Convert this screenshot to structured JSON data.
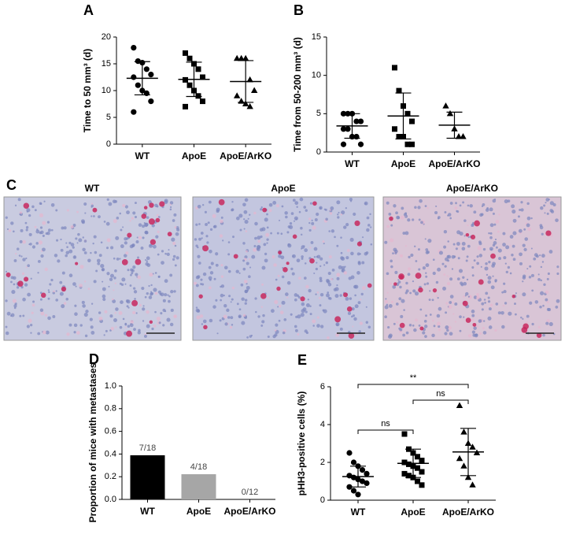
{
  "chart_data": [
    {
      "label": "A",
      "type": "dotplot",
      "y_label": "Time to 50 mm³ (d)",
      "categories": [
        "WT",
        "ApoE",
        "ApoE/ArKO"
      ],
      "values": [
        [
          18,
          15.5,
          15.2,
          14,
          13,
          12.5,
          11,
          10,
          9.5,
          8,
          6
        ],
        [
          17,
          16,
          15,
          14,
          12.5,
          12,
          11,
          10,
          9,
          8,
          7
        ],
        [
          16,
          16,
          16,
          12,
          10,
          9,
          8,
          7.5,
          7
        ]
      ],
      "mean": [
        12.3,
        12.1,
        11.7
      ],
      "sd": [
        3.1,
        3.2,
        3.9
      ],
      "markers": [
        "circle",
        "square",
        "triangle"
      ],
      "color": "#000000",
      "ylim": [
        0,
        20
      ],
      "yticks": [
        0,
        5,
        10,
        15,
        20
      ]
    },
    {
      "label": "B",
      "type": "dotplot",
      "y_label": "Time from 50-200 mm³ (d)",
      "categories": [
        "WT",
        "ApoE",
        "ApoE/ArKO"
      ],
      "values": [
        [
          5,
          5,
          5,
          4,
          4,
          3,
          3,
          2,
          2,
          1,
          1
        ],
        [
          11,
          8,
          6,
          5,
          4,
          3,
          2,
          2,
          1,
          1
        ],
        [
          6,
          5,
          3,
          2,
          2
        ]
      ],
      "mean": [
        3.4,
        4.7,
        3.5
      ],
      "sd": [
        1.6,
        3.0,
        1.7
      ],
      "markers": [
        "circle",
        "square",
        "triangle"
      ],
      "color": "#000000",
      "ylim": [
        0,
        15
      ],
      "yticks": [
        0,
        5,
        10,
        15
      ]
    },
    {
      "label": "D",
      "type": "bar",
      "y_label": "Proportion of mice with metastases",
      "categories": [
        "WT",
        "ApoE",
        "ApoE/ArKO"
      ],
      "values": [
        0.389,
        0.222,
        0
      ],
      "value_labels": [
        "7/18",
        "4/18",
        "0/12"
      ],
      "colors": [
        "#000000",
        "#a6a6a6",
        "#000000"
      ],
      "ylim": [
        0,
        1
      ],
      "yticks": [
        {
          "value": 0,
          "label": "0.0"
        },
        0.2,
        0.4,
        0.6,
        0.8,
        {
          "value": 1,
          "label": "1.0"
        }
      ]
    },
    {
      "label": "E",
      "type": "dotplot",
      "y_label": "pHH3-positive cells (%)",
      "categories": [
        "WT",
        "ApoE",
        "ApoE/ArKO"
      ],
      "values": [
        [
          2.5,
          2.0,
          1.8,
          1.6,
          1.4,
          1.3,
          1.2,
          1.1,
          1.0,
          0.9,
          0.7,
          0.5,
          0.3
        ],
        [
          3.5,
          2.7,
          2.5,
          2.3,
          2.1,
          2.0,
          1.9,
          1.8,
          1.7,
          1.5,
          1.4,
          1.3,
          1.2,
          1.0,
          0.8
        ],
        [
          5.0,
          3.6,
          3.0,
          2.8,
          2.5,
          2.2,
          1.8,
          1.2,
          0.8
        ]
      ],
      "mean": [
        1.25,
        1.95,
        2.55
      ],
      "sd": [
        0.55,
        0.75,
        1.25
      ],
      "markers": [
        "circle",
        "square",
        "triangle"
      ],
      "color": "#000000",
      "ylim": [
        0,
        6
      ],
      "yticks": [
        0,
        2,
        4,
        6
      ],
      "annotations": [
        {
          "text": "**",
          "from": 0,
          "to": 2
        },
        {
          "text": "ns",
          "from": 1,
          "to": 2
        },
        {
          "text": "ns",
          "from": 0,
          "to": 1
        }
      ]
    }
  ],
  "micrographs": {
    "label": "C",
    "titles": [
      "WT",
      "ApoE",
      "ApoE/ArKO"
    ]
  }
}
